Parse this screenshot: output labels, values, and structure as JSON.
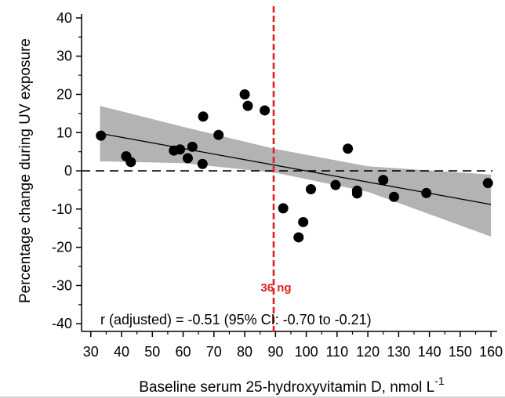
{
  "chart_data": {
    "type": "scatter",
    "title": "",
    "xlabel": "Baseline serum 25-hydroxyvitamin D, nmol L",
    "xlabel_superscript": "-1",
    "ylabel": "Percentage change during UV exposure",
    "xlim": [
      27,
      162
    ],
    "ylim": [
      -42,
      41
    ],
    "xticks": [
      30,
      40,
      50,
      60,
      70,
      80,
      90,
      100,
      110,
      120,
      130,
      140,
      150,
      160
    ],
    "yticks": [
      -40,
      -30,
      -20,
      -10,
      0,
      10,
      20,
      30,
      40
    ],
    "grid": false,
    "points": [
      {
        "x": 33.3,
        "y": 9.2
      },
      {
        "x": 41.5,
        "y": 3.8
      },
      {
        "x": 43.0,
        "y": 2.3
      },
      {
        "x": 57.0,
        "y": 5.3
      },
      {
        "x": 59.0,
        "y": 5.6
      },
      {
        "x": 61.5,
        "y": 3.3
      },
      {
        "x": 63.0,
        "y": 6.3
      },
      {
        "x": 66.5,
        "y": 14.2
      },
      {
        "x": 66.3,
        "y": 1.8
      },
      {
        "x": 71.5,
        "y": 9.4
      },
      {
        "x": 80.0,
        "y": 20.0
      },
      {
        "x": 81.0,
        "y": 17.0
      },
      {
        "x": 86.5,
        "y": 15.8
      },
      {
        "x": 92.5,
        "y": -9.8
      },
      {
        "x": 97.5,
        "y": -17.4
      },
      {
        "x": 99.0,
        "y": -13.4
      },
      {
        "x": 101.5,
        "y": -4.8
      },
      {
        "x": 109.5,
        "y": -3.7
      },
      {
        "x": 113.5,
        "y": 5.8
      },
      {
        "x": 116.5,
        "y": -5.2
      },
      {
        "x": 116.5,
        "y": -5.9
      },
      {
        "x": 125.0,
        "y": -2.4
      },
      {
        "x": 128.5,
        "y": -6.8
      },
      {
        "x": 139.0,
        "y": -5.8
      },
      {
        "x": 159.0,
        "y": -3.2
      }
    ],
    "regression_line": {
      "x": [
        33,
        160
      ],
      "y": [
        9.8,
        -8.8
      ]
    },
    "confidence_band": {
      "x": [
        33,
        60,
        90,
        120,
        160
      ],
      "upper": [
        17.0,
        11.5,
        5.7,
        1.2,
        -1.0
      ],
      "lower": [
        2.5,
        2.0,
        -0.5,
        -5.5,
        -17.2
      ]
    },
    "zero_line": {
      "y": 0,
      "style": "dashed"
    },
    "reference_line": {
      "x": 89.4,
      "color": "#e02020",
      "style": "dashed",
      "label": "36 ng"
    },
    "annotation": "r (adjusted) = -0.51 (95% CI: -0.70 to -0.21)",
    "colors": {
      "points": "#000000",
      "band": "#b3b3b3",
      "reference": "#e02020"
    }
  }
}
